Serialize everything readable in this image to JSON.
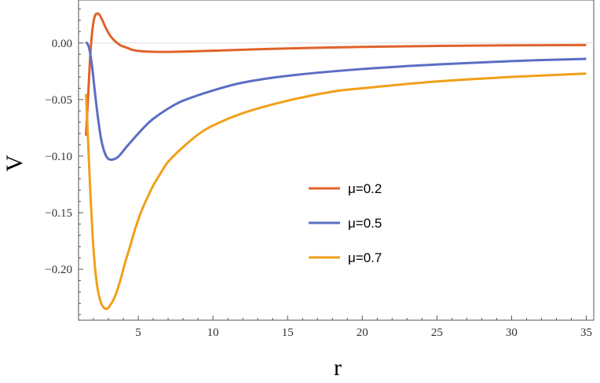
{
  "chart_data": {
    "type": "line",
    "xlabel": "r",
    "ylabel": "V",
    "xlim": [
      1,
      35.5
    ],
    "ylim": [
      -0.245,
      0.038
    ],
    "x_major_ticks": [
      5,
      10,
      15,
      20,
      25,
      30,
      35
    ],
    "x_tick_labels": [
      "5",
      "10",
      "15",
      "20",
      "25",
      "30",
      "35"
    ],
    "y_major_ticks": [
      0.0,
      -0.05,
      -0.1,
      -0.15,
      -0.2
    ],
    "y_tick_labels": [
      "0.00",
      "−0.05",
      "−0.10",
      "−0.15",
      "−0.20"
    ],
    "reference_line_y": 0,
    "legend_position": "center-right",
    "grid": false,
    "series": [
      {
        "name": "μ=0.2",
        "color": "#E0632A",
        "x": [
          1.5,
          1.65,
          1.8,
          1.95,
          2.1,
          2.25,
          2.4,
          2.6,
          2.8,
          3.0,
          3.2,
          3.5,
          3.8,
          4.2,
          4.6,
          5.0,
          5.5,
          6.0,
          6.8,
          8.0,
          10,
          15,
          20,
          25,
          30,
          35
        ],
        "y": [
          -0.082,
          -0.045,
          -0.008,
          0.014,
          0.024,
          0.026,
          0.025,
          0.02,
          0.014,
          0.009,
          0.005,
          0.001,
          -0.002,
          -0.004,
          -0.006,
          -0.007,
          -0.0075,
          -0.0078,
          -0.0079,
          -0.0076,
          -0.0068,
          -0.0048,
          -0.0034,
          -0.0026,
          -0.0021,
          -0.0018
        ]
      },
      {
        "name": "μ=0.5",
        "color": "#5B6EC4",
        "x": [
          1.5,
          1.7,
          1.9,
          2.1,
          2.3,
          2.5,
          2.7,
          2.9,
          3.1,
          3.3,
          3.5,
          3.7,
          3.9,
          4.2,
          4.6,
          5.0,
          5.5,
          6.0,
          7.0,
          8.0,
          10,
          12,
          15,
          20,
          25,
          30,
          35
        ],
        "y": [
          0.001,
          -0.004,
          -0.02,
          -0.044,
          -0.066,
          -0.084,
          -0.095,
          -0.101,
          -0.103,
          -0.103,
          -0.102,
          -0.1,
          -0.097,
          -0.092,
          -0.086,
          -0.08,
          -0.073,
          -0.067,
          -0.058,
          -0.051,
          -0.042,
          -0.035,
          -0.029,
          -0.023,
          -0.019,
          -0.016,
          -0.014
        ]
      },
      {
        "name": "μ=0.7",
        "color": "#F0A01A",
        "x": [
          1.5,
          1.65,
          1.8,
          1.95,
          2.1,
          2.25,
          2.4,
          2.55,
          2.7,
          2.85,
          3.0,
          3.15,
          3.3,
          3.5,
          3.7,
          3.9,
          4.1,
          4.4,
          4.8,
          5.2,
          5.6,
          6.0,
          6.5,
          7.0,
          8.0,
          9.0,
          10,
          12,
          15,
          18,
          20,
          25,
          30,
          35
        ],
        "y": [
          -0.045,
          -0.09,
          -0.135,
          -0.172,
          -0.198,
          -0.215,
          -0.225,
          -0.231,
          -0.234,
          -0.235,
          -0.234,
          -0.231,
          -0.228,
          -0.222,
          -0.214,
          -0.205,
          -0.195,
          -0.182,
          -0.164,
          -0.149,
          -0.137,
          -0.126,
          -0.115,
          -0.105,
          -0.092,
          -0.081,
          -0.073,
          -0.062,
          -0.051,
          -0.043,
          -0.04,
          -0.034,
          -0.03,
          -0.027
        ]
      }
    ]
  }
}
